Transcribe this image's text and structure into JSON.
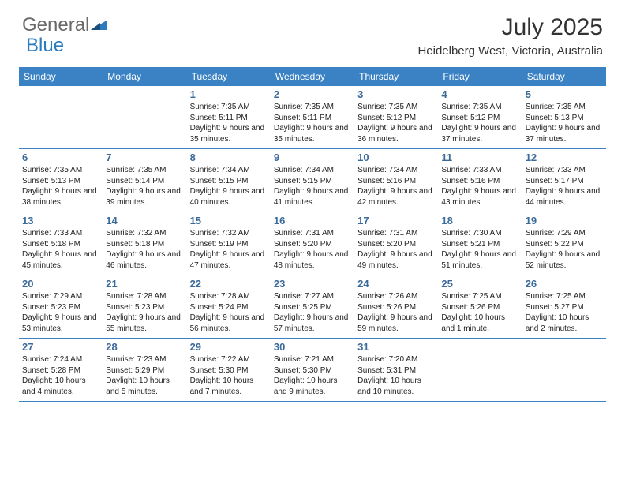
{
  "brand": {
    "text1": "General",
    "text2": "Blue"
  },
  "title": "July 2025",
  "location": "Heidelberg West, Victoria, Australia",
  "colors": {
    "header_bg": "#3b82c4",
    "header_text": "#ffffff",
    "daynum_color": "#3b6a99",
    "border_color": "#3b82c4",
    "logo_gray": "#6a6a6a",
    "logo_blue": "#2b7bbf"
  },
  "day_labels": [
    "Sunday",
    "Monday",
    "Tuesday",
    "Wednesday",
    "Thursday",
    "Friday",
    "Saturday"
  ],
  "weeks": [
    [
      null,
      null,
      {
        "n": "1",
        "sr": "7:35 AM",
        "ss": "5:11 PM",
        "dl": "9 hours and 35 minutes."
      },
      {
        "n": "2",
        "sr": "7:35 AM",
        "ss": "5:11 PM",
        "dl": "9 hours and 35 minutes."
      },
      {
        "n": "3",
        "sr": "7:35 AM",
        "ss": "5:12 PM",
        "dl": "9 hours and 36 minutes."
      },
      {
        "n": "4",
        "sr": "7:35 AM",
        "ss": "5:12 PM",
        "dl": "9 hours and 37 minutes."
      },
      {
        "n": "5",
        "sr": "7:35 AM",
        "ss": "5:13 PM",
        "dl": "9 hours and 37 minutes."
      }
    ],
    [
      {
        "n": "6",
        "sr": "7:35 AM",
        "ss": "5:13 PM",
        "dl": "9 hours and 38 minutes."
      },
      {
        "n": "7",
        "sr": "7:35 AM",
        "ss": "5:14 PM",
        "dl": "9 hours and 39 minutes."
      },
      {
        "n": "8",
        "sr": "7:34 AM",
        "ss": "5:15 PM",
        "dl": "9 hours and 40 minutes."
      },
      {
        "n": "9",
        "sr": "7:34 AM",
        "ss": "5:15 PM",
        "dl": "9 hours and 41 minutes."
      },
      {
        "n": "10",
        "sr": "7:34 AM",
        "ss": "5:16 PM",
        "dl": "9 hours and 42 minutes."
      },
      {
        "n": "11",
        "sr": "7:33 AM",
        "ss": "5:16 PM",
        "dl": "9 hours and 43 minutes."
      },
      {
        "n": "12",
        "sr": "7:33 AM",
        "ss": "5:17 PM",
        "dl": "9 hours and 44 minutes."
      }
    ],
    [
      {
        "n": "13",
        "sr": "7:33 AM",
        "ss": "5:18 PM",
        "dl": "9 hours and 45 minutes."
      },
      {
        "n": "14",
        "sr": "7:32 AM",
        "ss": "5:18 PM",
        "dl": "9 hours and 46 minutes."
      },
      {
        "n": "15",
        "sr": "7:32 AM",
        "ss": "5:19 PM",
        "dl": "9 hours and 47 minutes."
      },
      {
        "n": "16",
        "sr": "7:31 AM",
        "ss": "5:20 PM",
        "dl": "9 hours and 48 minutes."
      },
      {
        "n": "17",
        "sr": "7:31 AM",
        "ss": "5:20 PM",
        "dl": "9 hours and 49 minutes."
      },
      {
        "n": "18",
        "sr": "7:30 AM",
        "ss": "5:21 PM",
        "dl": "9 hours and 51 minutes."
      },
      {
        "n": "19",
        "sr": "7:29 AM",
        "ss": "5:22 PM",
        "dl": "9 hours and 52 minutes."
      }
    ],
    [
      {
        "n": "20",
        "sr": "7:29 AM",
        "ss": "5:23 PM",
        "dl": "9 hours and 53 minutes."
      },
      {
        "n": "21",
        "sr": "7:28 AM",
        "ss": "5:23 PM",
        "dl": "9 hours and 55 minutes."
      },
      {
        "n": "22",
        "sr": "7:28 AM",
        "ss": "5:24 PM",
        "dl": "9 hours and 56 minutes."
      },
      {
        "n": "23",
        "sr": "7:27 AM",
        "ss": "5:25 PM",
        "dl": "9 hours and 57 minutes."
      },
      {
        "n": "24",
        "sr": "7:26 AM",
        "ss": "5:26 PM",
        "dl": "9 hours and 59 minutes."
      },
      {
        "n": "25",
        "sr": "7:25 AM",
        "ss": "5:26 PM",
        "dl": "10 hours and 1 minute."
      },
      {
        "n": "26",
        "sr": "7:25 AM",
        "ss": "5:27 PM",
        "dl": "10 hours and 2 minutes."
      }
    ],
    [
      {
        "n": "27",
        "sr": "7:24 AM",
        "ss": "5:28 PM",
        "dl": "10 hours and 4 minutes."
      },
      {
        "n": "28",
        "sr": "7:23 AM",
        "ss": "5:29 PM",
        "dl": "10 hours and 5 minutes."
      },
      {
        "n": "29",
        "sr": "7:22 AM",
        "ss": "5:30 PM",
        "dl": "10 hours and 7 minutes."
      },
      {
        "n": "30",
        "sr": "7:21 AM",
        "ss": "5:30 PM",
        "dl": "10 hours and 9 minutes."
      },
      {
        "n": "31",
        "sr": "7:20 AM",
        "ss": "5:31 PM",
        "dl": "10 hours and 10 minutes."
      },
      null,
      null
    ]
  ],
  "labels": {
    "sunrise": "Sunrise:",
    "sunset": "Sunset:",
    "daylight": "Daylight:"
  }
}
